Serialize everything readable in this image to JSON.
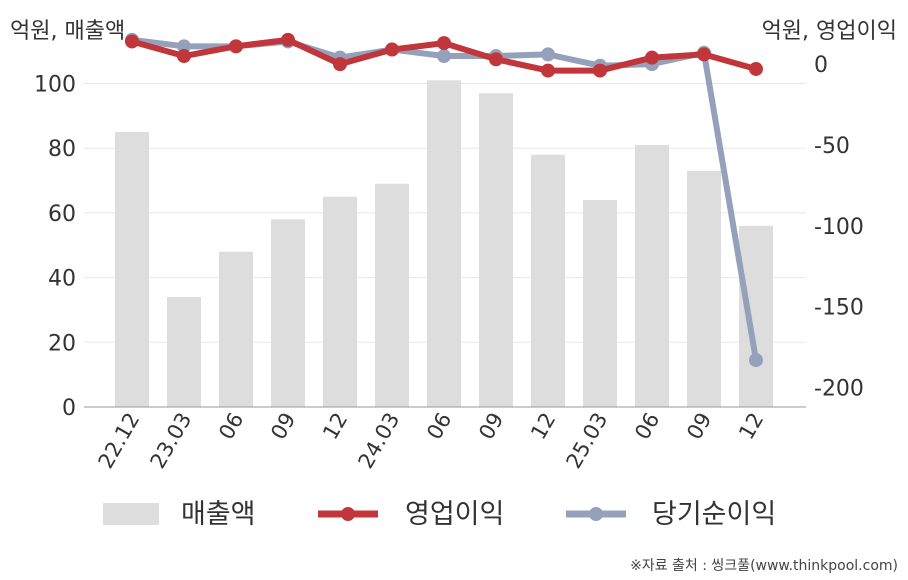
{
  "chart_data": {
    "type": "bar+line",
    "categories": [
      "22.12",
      "23.03",
      "06",
      "09",
      "12",
      "24.03",
      "06",
      "09",
      "12",
      "25.03",
      "06",
      "09",
      "12"
    ],
    "left_axis": {
      "label": "억원, 매출액",
      "ylim": [
        0,
        115
      ],
      "ticks": [
        0,
        20,
        40,
        60,
        80,
        100
      ]
    },
    "right_axis": {
      "label": "억원, 영업이익",
      "ylim": [
        -212,
        18
      ],
      "ticks": [
        0,
        -50,
        -100,
        -150,
        -200
      ]
    },
    "series": [
      {
        "name": "매출액",
        "kind": "bar",
        "axis": "left",
        "color": "#dddddd",
        "values": [
          85,
          34,
          48,
          58,
          65,
          69,
          101,
          97,
          78,
          64,
          81,
          73,
          56
        ]
      },
      {
        "name": "영업이익",
        "kind": "line",
        "axis": "right",
        "color": "#c0363a",
        "values": [
          14,
          5,
          11,
          15,
          0,
          9,
          13,
          3,
          -4,
          -4,
          4,
          6,
          -3
        ]
      },
      {
        "name": "당기순이익",
        "kind": "line",
        "axis": "right",
        "color": "#95a0bb",
        "values": [
          15,
          11,
          11,
          14,
          4,
          9,
          5,
          5,
          6,
          -1,
          0,
          7,
          -183
        ]
      }
    ],
    "grid": true,
    "legend_position": "bottom"
  },
  "source": "※자료 출처 : 씽크풀(www.thinkpool.com)"
}
